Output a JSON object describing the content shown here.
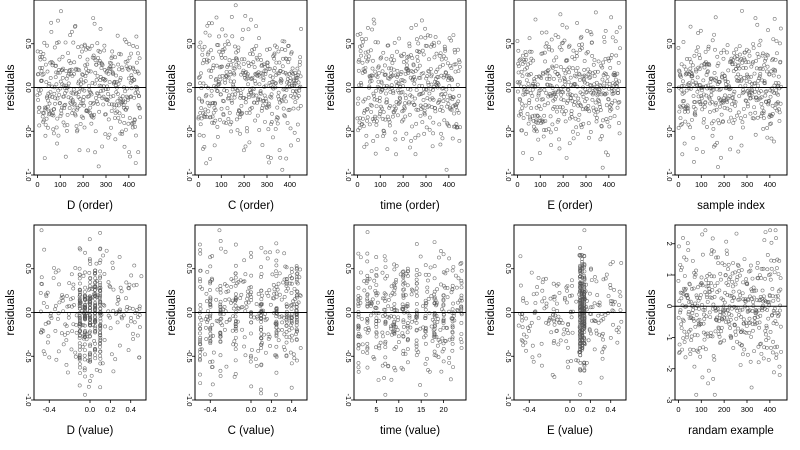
{
  "figure": {
    "background": "#ffffff",
    "point_color": "#555555",
    "zero_line_color": "#000000"
  },
  "chart_data": [
    {
      "type": "scatter",
      "xlabel": "D (order)",
      "ylabel": "residuals",
      "xlim": [
        -15,
        475
      ],
      "ylim": [
        -1,
        1
      ],
      "xticks": [
        0,
        100,
        200,
        300,
        400
      ],
      "xtick_labels": [
        "0",
        "100",
        "200",
        "300",
        "400"
      ],
      "yticks": [
        -1,
        -0.5,
        0,
        0.5
      ],
      "ytick_labels": [
        "-1.0",
        "-0.5",
        "0.0",
        "0.5"
      ],
      "hline": 0,
      "points_note": "about 450 residual points, spread roughly uniformly over x, residuals mostly between -0.8 and 0.8",
      "n": 450,
      "x_kind": "index",
      "seed": 11,
      "spread": 0.32
    },
    {
      "type": "scatter",
      "xlabel": "C (order)",
      "ylabel": "residuals",
      "xlim": [
        -15,
        475
      ],
      "ylim": [
        -1,
        1
      ],
      "xticks": [
        0,
        100,
        200,
        300,
        400
      ],
      "xtick_labels": [
        "0",
        "100",
        "200",
        "300",
        "400"
      ],
      "yticks": [
        -1,
        -0.5,
        0,
        0.5
      ],
      "ytick_labels": [
        "-1.0",
        "-0.5",
        "0.0",
        "0.5"
      ],
      "hline": 0,
      "n": 450,
      "x_kind": "index",
      "seed": 23,
      "spread": 0.32
    },
    {
      "type": "scatter",
      "xlabel": "time (order)",
      "ylabel": "residuals",
      "xlim": [
        -15,
        475
      ],
      "ylim": [
        -1,
        1
      ],
      "xticks": [
        0,
        100,
        200,
        300,
        400
      ],
      "xtick_labels": [
        "0",
        "100",
        "200",
        "300",
        "400"
      ],
      "yticks": [
        -1,
        -0.5,
        0,
        0.5
      ],
      "ytick_labels": [
        "-1.0",
        "-0.5",
        "0.0",
        "0.5"
      ],
      "hline": 0,
      "n": 450,
      "x_kind": "index",
      "seed": 37,
      "spread": 0.32
    },
    {
      "type": "scatter",
      "xlabel": "E (order)",
      "ylabel": "residuals",
      "xlim": [
        -15,
        475
      ],
      "ylim": [
        -1,
        1
      ],
      "xticks": [
        0,
        100,
        200,
        300,
        400
      ],
      "xtick_labels": [
        "0",
        "100",
        "200",
        "300",
        "400"
      ],
      "yticks": [
        -1,
        -0.5,
        0,
        0.5
      ],
      "ytick_labels": [
        "-1.0",
        "-0.5",
        "0.0",
        "0.5"
      ],
      "hline": 0,
      "n": 450,
      "x_kind": "index",
      "seed": 41,
      "spread": 0.32
    },
    {
      "type": "scatter",
      "xlabel": "sample index",
      "ylabel": "residuals",
      "xlim": [
        -15,
        475
      ],
      "ylim": [
        -1,
        1
      ],
      "xticks": [
        0,
        100,
        200,
        300,
        400
      ],
      "xtick_labels": [
        "0",
        "100",
        "200",
        "300",
        "400"
      ],
      "yticks": [
        -1,
        -0.5,
        0,
        0.5
      ],
      "ytick_labels": [
        "-1.0",
        "-0.5",
        "0.0",
        "0.5"
      ],
      "hline": 0,
      "n": 450,
      "x_kind": "index",
      "seed": 53,
      "spread": 0.32
    },
    {
      "type": "scatter",
      "xlabel": "D (value)",
      "ylabel": "residuals",
      "xlim": [
        -0.55,
        0.55
      ],
      "ylim": [
        -1,
        1
      ],
      "xticks": [
        -0.4,
        0,
        0.2,
        0.4
      ],
      "xtick_labels": [
        "-0.4",
        "0.0",
        "0.2",
        "0.4"
      ],
      "yticks": [
        -1,
        -0.5,
        0,
        0.5
      ],
      "ytick_labels": [
        "-1.0",
        "-0.5",
        "0.0",
        "0.5"
      ],
      "hline": 0,
      "n": 450,
      "x_kind": "value",
      "seed": 61,
      "spread": 0.32,
      "clusters": [
        -0.1,
        -0.05,
        0.0,
        0.05,
        0.1
      ]
    },
    {
      "type": "scatter",
      "xlabel": "C (value)",
      "ylabel": "residuals",
      "xlim": [
        -0.55,
        0.55
      ],
      "ylim": [
        -1,
        1
      ],
      "xticks": [
        -0.4,
        0,
        0.2,
        0.4
      ],
      "xtick_labels": [
        "-0.4",
        "0.0",
        "0.2",
        "0.4"
      ],
      "yticks": [
        -1,
        -0.5,
        0,
        0.5
      ],
      "ytick_labels": [
        "-1.0",
        "-0.5",
        "0.0",
        "0.5"
      ],
      "hline": 0,
      "n": 450,
      "x_kind": "value",
      "seed": 71,
      "spread": 0.34,
      "clusters": [
        -0.5,
        -0.4,
        -0.3,
        -0.15,
        0.0,
        0.1,
        0.25,
        0.35,
        0.4,
        0.45
      ]
    },
    {
      "type": "scatter",
      "xlabel": "time (value)",
      "ylabel": "residuals",
      "xlim": [
        0,
        25
      ],
      "ylim": [
        -1,
        1
      ],
      "xticks": [
        5,
        10,
        15,
        20
      ],
      "xtick_labels": [
        "5",
        "10",
        "15",
        "20"
      ],
      "yticks": [
        -1,
        -0.5,
        0,
        0.5
      ],
      "ytick_labels": [
        "-1.0",
        "-0.5",
        "0.0",
        "0.5"
      ],
      "hline": 0,
      "n": 450,
      "x_kind": "value",
      "seed": 83,
      "spread": 0.32,
      "clusters": [
        1,
        3,
        5,
        7,
        9,
        11,
        12,
        14,
        16,
        18,
        20,
        22,
        24
      ]
    },
    {
      "type": "scatter",
      "xlabel": "E (value)",
      "ylabel": "residuals",
      "xlim": [
        -0.55,
        0.55
      ],
      "ylim": [
        -1,
        1
      ],
      "xticks": [
        -0.4,
        0,
        0.2,
        0.4
      ],
      "xtick_labels": [
        "-0.4",
        "0.0",
        "0.2",
        "0.4"
      ],
      "yticks": [
        -1,
        -0.5,
        0,
        0.5
      ],
      "ytick_labels": [
        "-1.0",
        "-0.5",
        "0.0",
        "0.5"
      ],
      "hline": 0,
      "n": 450,
      "x_kind": "value",
      "seed": 97,
      "spread": 0.32,
      "clusters": [
        0.1,
        0.12,
        0.14
      ]
    },
    {
      "type": "scatter",
      "xlabel": "randam example",
      "ylabel": "residuals",
      "xlim": [
        -15,
        475
      ],
      "ylim": [
        -3,
        2.6
      ],
      "xticks": [
        0,
        100,
        200,
        300,
        400
      ],
      "xtick_labels": [
        "0",
        "100",
        "200",
        "300",
        "400"
      ],
      "yticks": [
        -3,
        -2,
        -1,
        0,
        1,
        2
      ],
      "ytick_labels": [
        "-3",
        "-2",
        "-1",
        "0",
        "1",
        "2"
      ],
      "hline": 0,
      "n": 450,
      "x_kind": "index",
      "seed": 109,
      "spread": 1.0
    }
  ]
}
